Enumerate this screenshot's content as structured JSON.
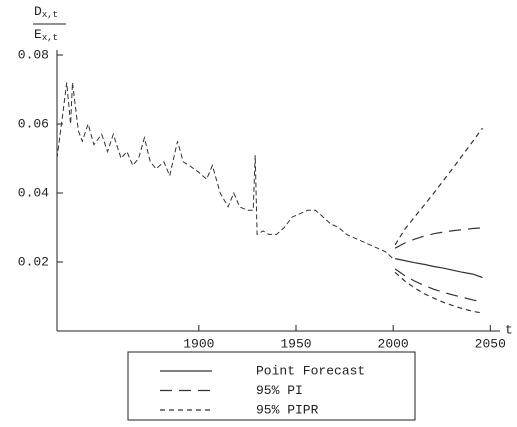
{
  "chart_data": {
    "type": "line",
    "ylabel": {
      "numerator": {
        "base": "D",
        "sub": "x,t"
      },
      "denominator": {
        "base": "E",
        "sub": "x,t"
      }
    },
    "xlabel": "t",
    "xlim": [
      1827,
      2055
    ],
    "ylim": [
      0,
      0.08
    ],
    "xticks": [
      1900,
      1950,
      2000,
      2050
    ],
    "yticks": [
      0.02,
      0.04,
      0.06,
      0.08
    ],
    "observed": {
      "color": "#333333",
      "dash": "5,3",
      "x": [
        1827,
        1830,
        1832,
        1834,
        1835,
        1838,
        1840,
        1843,
        1846,
        1850,
        1853,
        1856,
        1860,
        1863,
        1866,
        1869,
        1872,
        1875,
        1878,
        1882,
        1885,
        1889,
        1892,
        1895,
        1900,
        1904,
        1907,
        1911,
        1915,
        1918,
        1921,
        1925,
        1928,
        1929,
        1930,
        1933,
        1936,
        1940,
        1944,
        1948,
        1952,
        1956,
        1960,
        1964,
        1968,
        1972,
        1976,
        1980,
        1984,
        1988,
        1992,
        1996,
        2000
      ],
      "values": [
        0.05,
        0.063,
        0.072,
        0.06,
        0.072,
        0.058,
        0.055,
        0.06,
        0.054,
        0.057,
        0.052,
        0.057,
        0.05,
        0.052,
        0.048,
        0.05,
        0.056,
        0.049,
        0.047,
        0.049,
        0.045,
        0.055,
        0.049,
        0.048,
        0.046,
        0.044,
        0.048,
        0.04,
        0.036,
        0.04,
        0.036,
        0.035,
        0.035,
        0.051,
        0.028,
        0.029,
        0.028,
        0.028,
        0.03,
        0.033,
        0.034,
        0.035,
        0.035,
        0.033,
        0.031,
        0.03,
        0.028,
        0.027,
        0.026,
        0.025,
        0.024,
        0.023,
        0.021
      ]
    },
    "forecast_x": [
      2001,
      2006,
      2011,
      2016,
      2021,
      2026,
      2031,
      2036,
      2041,
      2046
    ],
    "series": [
      {
        "name": "Point Forecast",
        "color": "#333333",
        "dash": "none",
        "values": [
          0.021,
          0.0204,
          0.0198,
          0.0193,
          0.0187,
          0.0182,
          0.0176,
          0.017,
          0.0165,
          0.0155
        ]
      },
      {
        "name": "95% PI",
        "color": "#333333",
        "dash": "12,7",
        "upper": [
          0.024,
          0.0255,
          0.0266,
          0.0275,
          0.0282,
          0.0287,
          0.0291,
          0.0294,
          0.0297,
          0.0299
        ],
        "lower": [
          0.018,
          0.016,
          0.0145,
          0.0132,
          0.0121,
          0.0112,
          0.0104,
          0.0097,
          0.009,
          0.0084
        ]
      },
      {
        "name": "95% PIPR",
        "color": "#333333",
        "dash": "5,4",
        "upper": [
          0.025,
          0.0295,
          0.033,
          0.0365,
          0.04,
          0.0437,
          0.0474,
          0.0512,
          0.055,
          0.0588
        ],
        "lower": [
          0.017,
          0.0145,
          0.0125,
          0.0108,
          0.0095,
          0.0083,
          0.0073,
          0.0064,
          0.0057,
          0.0052
        ]
      }
    ]
  }
}
